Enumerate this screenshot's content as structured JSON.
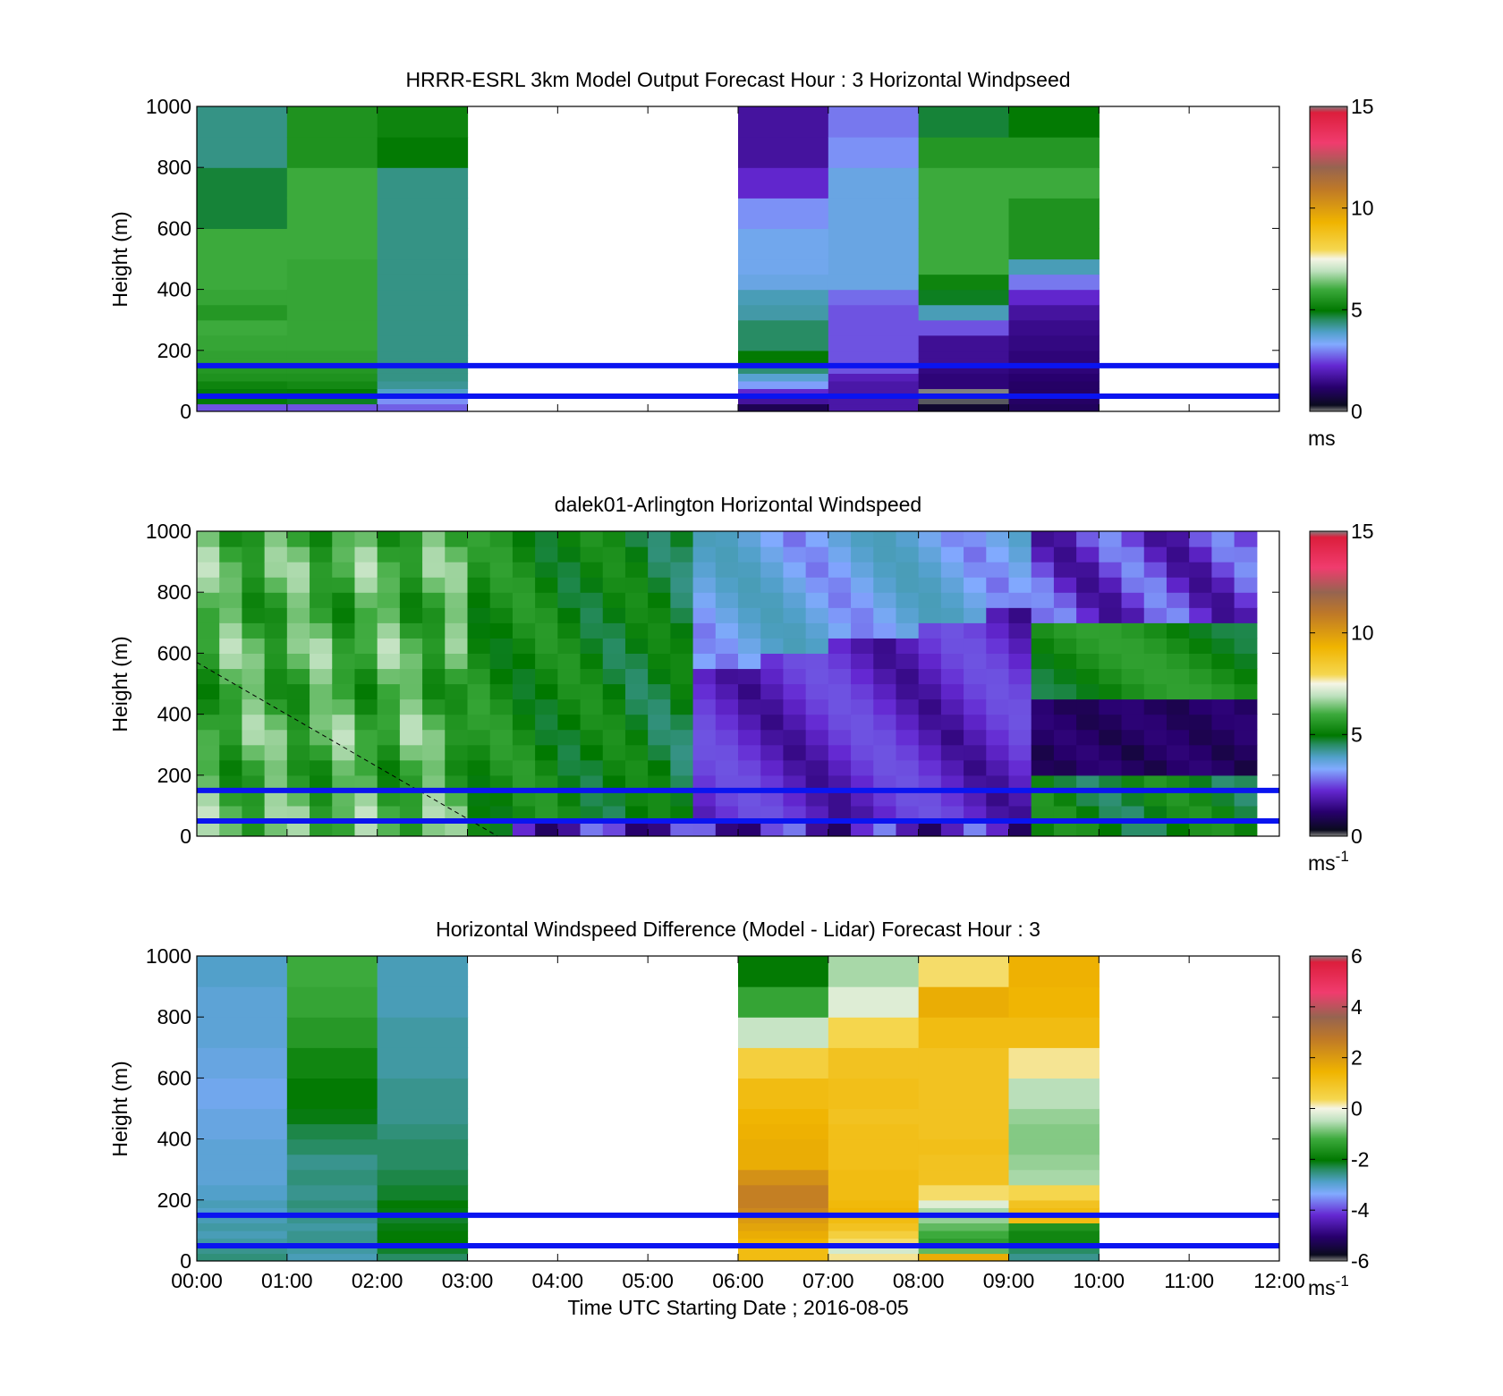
{
  "figure": {
    "xlabel": "Time UTC  Starting Date ; 2016-08-05",
    "xticks": [
      "00:00",
      "01:00",
      "02:00",
      "03:00",
      "04:00",
      "05:00",
      "06:00",
      "07:00",
      "08:00",
      "09:00",
      "10:00",
      "11:00",
      "12:00"
    ]
  },
  "chart_data": [
    {
      "type": "heatmap",
      "title": "HRRR-ESRL 3km Model Output   Forecast Hour : 3 Horizontal Windpseed",
      "ylabel": "Height (m)",
      "xlim": [
        "00:00",
        "12:00"
      ],
      "ylim": [
        0,
        1000
      ],
      "yticks": [
        "0",
        "200",
        "400",
        "600",
        "800",
        "1000"
      ],
      "colorbar": {
        "ticks": [
          "0",
          "5",
          "10",
          "15"
        ],
        "min": 0,
        "max": 15,
        "unit": "ms",
        "unit_sup": ""
      },
      "hlines_m": [
        150,
        50
      ],
      "hline_color": "#0a14f0",
      "colormap": "windspeed",
      "time_columns": [
        "00:00-01:00",
        "01:00-02:00",
        "02:00-03:00",
        "06:00-07:00",
        "07:00-08:00",
        "08:00-09:00",
        "09:00-10:00"
      ],
      "height_levels_m": [
        0,
        25,
        50,
        75,
        100,
        125,
        150,
        175,
        200,
        250,
        300,
        350,
        400,
        450,
        500,
        600,
        700,
        800,
        900,
        1000
      ],
      "values": [
        [
          2.6,
          5.0,
          4.9,
          5.2,
          5.5,
          5.6,
          5.8,
          5.8,
          5.9,
          6.0,
          5.6,
          5.9,
          6.0,
          6.0,
          6.0,
          4.7,
          4.7,
          4.3,
          4.3
        ],
        [
          2.6,
          4.8,
          5.0,
          5.3,
          5.5,
          5.6,
          5.8,
          5.8,
          5.9,
          5.9,
          5.9,
          5.9,
          5.9,
          5.9,
          6.0,
          6.0,
          6.0,
          5.5,
          5.5
        ],
        [
          2.7,
          3.1,
          3.9,
          4.2,
          4.3,
          4.3,
          4.3,
          4.3,
          4.3,
          4.3,
          4.3,
          4.3,
          4.3,
          4.3,
          4.3,
          4.3,
          4.3,
          5.0,
          5.2
        ],
        [
          0.9,
          1.7,
          2.2,
          3.2,
          3.8,
          4.4,
          5.0,
          5.0,
          4.5,
          4.5,
          4.1,
          4.0,
          3.6,
          3.5,
          3.5,
          3.1,
          2.2,
          1.7,
          1.7
        ],
        [
          1.8,
          1.8,
          1.8,
          1.8,
          2.0,
          2.6,
          2.6,
          2.6,
          2.6,
          2.6,
          2.6,
          2.8,
          3.6,
          3.6,
          3.6,
          3.6,
          3.6,
          3.1,
          2.9
        ],
        [
          0.5,
          0.1,
          0.0,
          1.3,
          1.3,
          1.4,
          1.6,
          1.6,
          1.6,
          2.6,
          4.0,
          4.8,
          5.2,
          6.0,
          6.0,
          6.0,
          6.0,
          5.6,
          4.7
        ],
        [
          1.0,
          1.1,
          1.1,
          1.1,
          1.2,
          1.3,
          1.3,
          1.3,
          1.4,
          1.5,
          1.7,
          2.2,
          2.9,
          4.0,
          5.5,
          5.5,
          6.0,
          5.6,
          5.0
        ]
      ]
    },
    {
      "type": "heatmap",
      "title": "dalek01-Arlington  Horizontal Windspeed",
      "ylabel": "Height (m)",
      "xlim": [
        "00:00",
        "12:00"
      ],
      "ylim": [
        0,
        1000
      ],
      "yticks": [
        "0",
        "200",
        "400",
        "600",
        "800",
        "1000"
      ],
      "colorbar": {
        "ticks": [
          "0",
          "5",
          "10",
          "15"
        ],
        "min": 0,
        "max": 15,
        "unit": "ms",
        "unit_sup": "-1"
      },
      "hlines_m": [
        150,
        50
      ],
      "hline_color": "#0a14f0",
      "colormap": "windspeed",
      "resolution": "approx. 15-minute time bins, 50 m height bins",
      "dashed_line": {
        "from": [
          "00:00",
          570
        ],
        "to": [
          "03:20",
          0
        ]
      }
    },
    {
      "type": "heatmap",
      "title": "Horizontal Windspeed Difference (Model - Lidar) Forecast Hour : 3",
      "ylabel": "Height (m)",
      "xlim": [
        "00:00",
        "12:00"
      ],
      "ylim": [
        0,
        1000
      ],
      "yticks": [
        "0",
        "200",
        "400",
        "600",
        "800",
        "1000"
      ],
      "colorbar": {
        "ticks": [
          "-6",
          "-4",
          "-2",
          "0",
          "2",
          "4",
          "6"
        ],
        "min": -6,
        "max": 6,
        "unit": "ms",
        "unit_sup": "-1"
      },
      "hlines_m": [
        150,
        50
      ],
      "hline_color": "#0a14f0",
      "colormap": "difference",
      "time_columns": [
        "00:00-01:00",
        "01:00-02:00",
        "02:00-03:00",
        "06:00-07:00",
        "07:00-08:00",
        "08:00-09:00",
        "09:00-10:00"
      ],
      "height_levels_m": [
        0,
        25,
        50,
        75,
        100,
        125,
        150,
        175,
        200,
        250,
        300,
        350,
        400,
        450,
        500,
        600,
        700,
        800,
        900,
        1000
      ],
      "values": [
        [
          -2.5,
          -2.6,
          -2.7,
          -2.8,
          -2.7,
          -2.8,
          -2.9,
          -2.8,
          -2.9,
          -3.0,
          -3.0,
          -3.0,
          -3.1,
          -3.1,
          -3.2,
          -3.1,
          -3.0,
          -3.0,
          -2.9
        ],
        [
          -2.8,
          -2.7,
          -2.6,
          -2.6,
          -2.7,
          -2.6,
          -2.6,
          -2.5,
          -2.6,
          -2.5,
          -2.6,
          -2.4,
          -2.3,
          -2.1,
          -2.0,
          -1.8,
          -1.5,
          -1.3,
          -1.2
        ],
        [
          -2.4,
          -2.2,
          -2.0,
          -2.0,
          -2.1,
          -2.2,
          -2.1,
          -2.0,
          -2.2,
          -2.3,
          -2.4,
          -2.4,
          -2.5,
          -2.6,
          -2.6,
          -2.7,
          -2.7,
          -2.8,
          -2.8
        ],
        [
          1.2,
          1.2,
          1.4,
          1.6,
          1.8,
          2.0,
          2.4,
          2.6,
          2.6,
          2.2,
          1.6,
          1.6,
          1.5,
          1.4,
          1.2,
          0.6,
          -0.4,
          -1.3,
          -2.0
        ],
        [
          0.2,
          -0.3,
          0.3,
          0.6,
          1.0,
          1.2,
          1.4,
          1.3,
          1.2,
          1.2,
          1.1,
          1.1,
          1.1,
          1.0,
          1.1,
          1.0,
          0.4,
          -0.2,
          -0.6
        ],
        [
          1.6,
          -1.0,
          -1.4,
          -1.2,
          -1.0,
          -0.7,
          -0.6,
          -0.2,
          0.3,
          1.0,
          1.0,
          1.1,
          1.0,
          1.0,
          1.0,
          1.0,
          1.2,
          1.6,
          0.3
        ],
        [
          -2.6,
          -2.4,
          -1.8,
          -1.8,
          -1.6,
          1.2,
          1.2,
          1.0,
          0.4,
          -0.6,
          -0.7,
          -0.8,
          -0.8,
          -0.7,
          -0.5,
          0.2,
          1.2,
          1.4,
          1.5
        ]
      ]
    }
  ]
}
